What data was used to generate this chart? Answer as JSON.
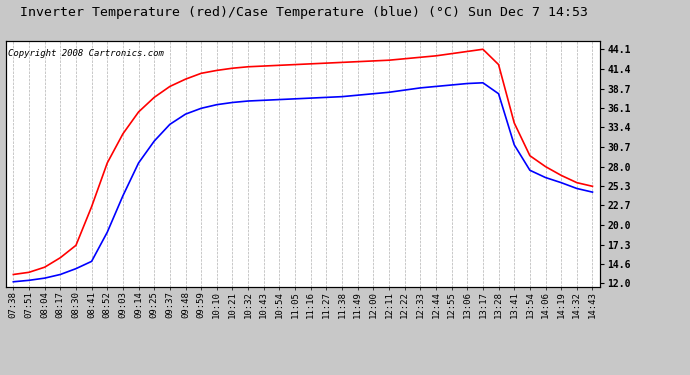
{
  "title": "Inverter Temperature (red)/Case Temperature (blue) (°C) Sun Dec 7 14:53",
  "copyright": "Copyright 2008 Cartronics.com",
  "yticks": [
    12.0,
    14.6,
    17.3,
    20.0,
    22.7,
    25.3,
    28.0,
    30.7,
    33.4,
    36.1,
    38.7,
    41.4,
    44.1
  ],
  "ylim": [
    11.5,
    45.2
  ],
  "xtick_labels": [
    "07:38",
    "07:51",
    "08:04",
    "08:17",
    "08:30",
    "08:41",
    "08:52",
    "09:03",
    "09:14",
    "09:25",
    "09:37",
    "09:48",
    "09:59",
    "10:10",
    "10:21",
    "10:32",
    "10:43",
    "10:54",
    "11:05",
    "11:16",
    "11:27",
    "11:38",
    "11:49",
    "12:00",
    "12:11",
    "12:22",
    "12:33",
    "12:44",
    "12:55",
    "13:06",
    "13:17",
    "13:28",
    "13:41",
    "13:54",
    "14:06",
    "14:19",
    "14:32",
    "14:43"
  ],
  "red_data": [
    13.2,
    13.5,
    14.2,
    15.5,
    17.2,
    22.5,
    28.5,
    32.5,
    35.5,
    37.5,
    39.0,
    40.0,
    40.8,
    41.2,
    41.5,
    41.7,
    41.8,
    41.9,
    42.0,
    42.1,
    42.2,
    42.3,
    42.4,
    42.5,
    42.6,
    42.8,
    43.0,
    43.2,
    43.5,
    43.8,
    44.1,
    42.0,
    34.0,
    29.5,
    28.0,
    26.8,
    25.8,
    25.3
  ],
  "blue_data": [
    12.2,
    12.4,
    12.7,
    13.2,
    14.0,
    15.0,
    19.0,
    24.0,
    28.5,
    31.5,
    33.8,
    35.2,
    36.0,
    36.5,
    36.8,
    37.0,
    37.1,
    37.2,
    37.3,
    37.4,
    37.5,
    37.6,
    37.8,
    38.0,
    38.2,
    38.5,
    38.8,
    39.0,
    39.2,
    39.4,
    39.5,
    38.0,
    31.0,
    27.5,
    26.5,
    25.8,
    25.0,
    24.5
  ],
  "bg_color": "#c8c8c8",
  "plot_bg_color": "#ffffff",
  "grid_color": "#aaaaaa",
  "red_color": "#ff0000",
  "blue_color": "#0000ff",
  "title_fontsize": 9.5,
  "tick_fontsize": 6.5,
  "copyright_fontsize": 6.5
}
